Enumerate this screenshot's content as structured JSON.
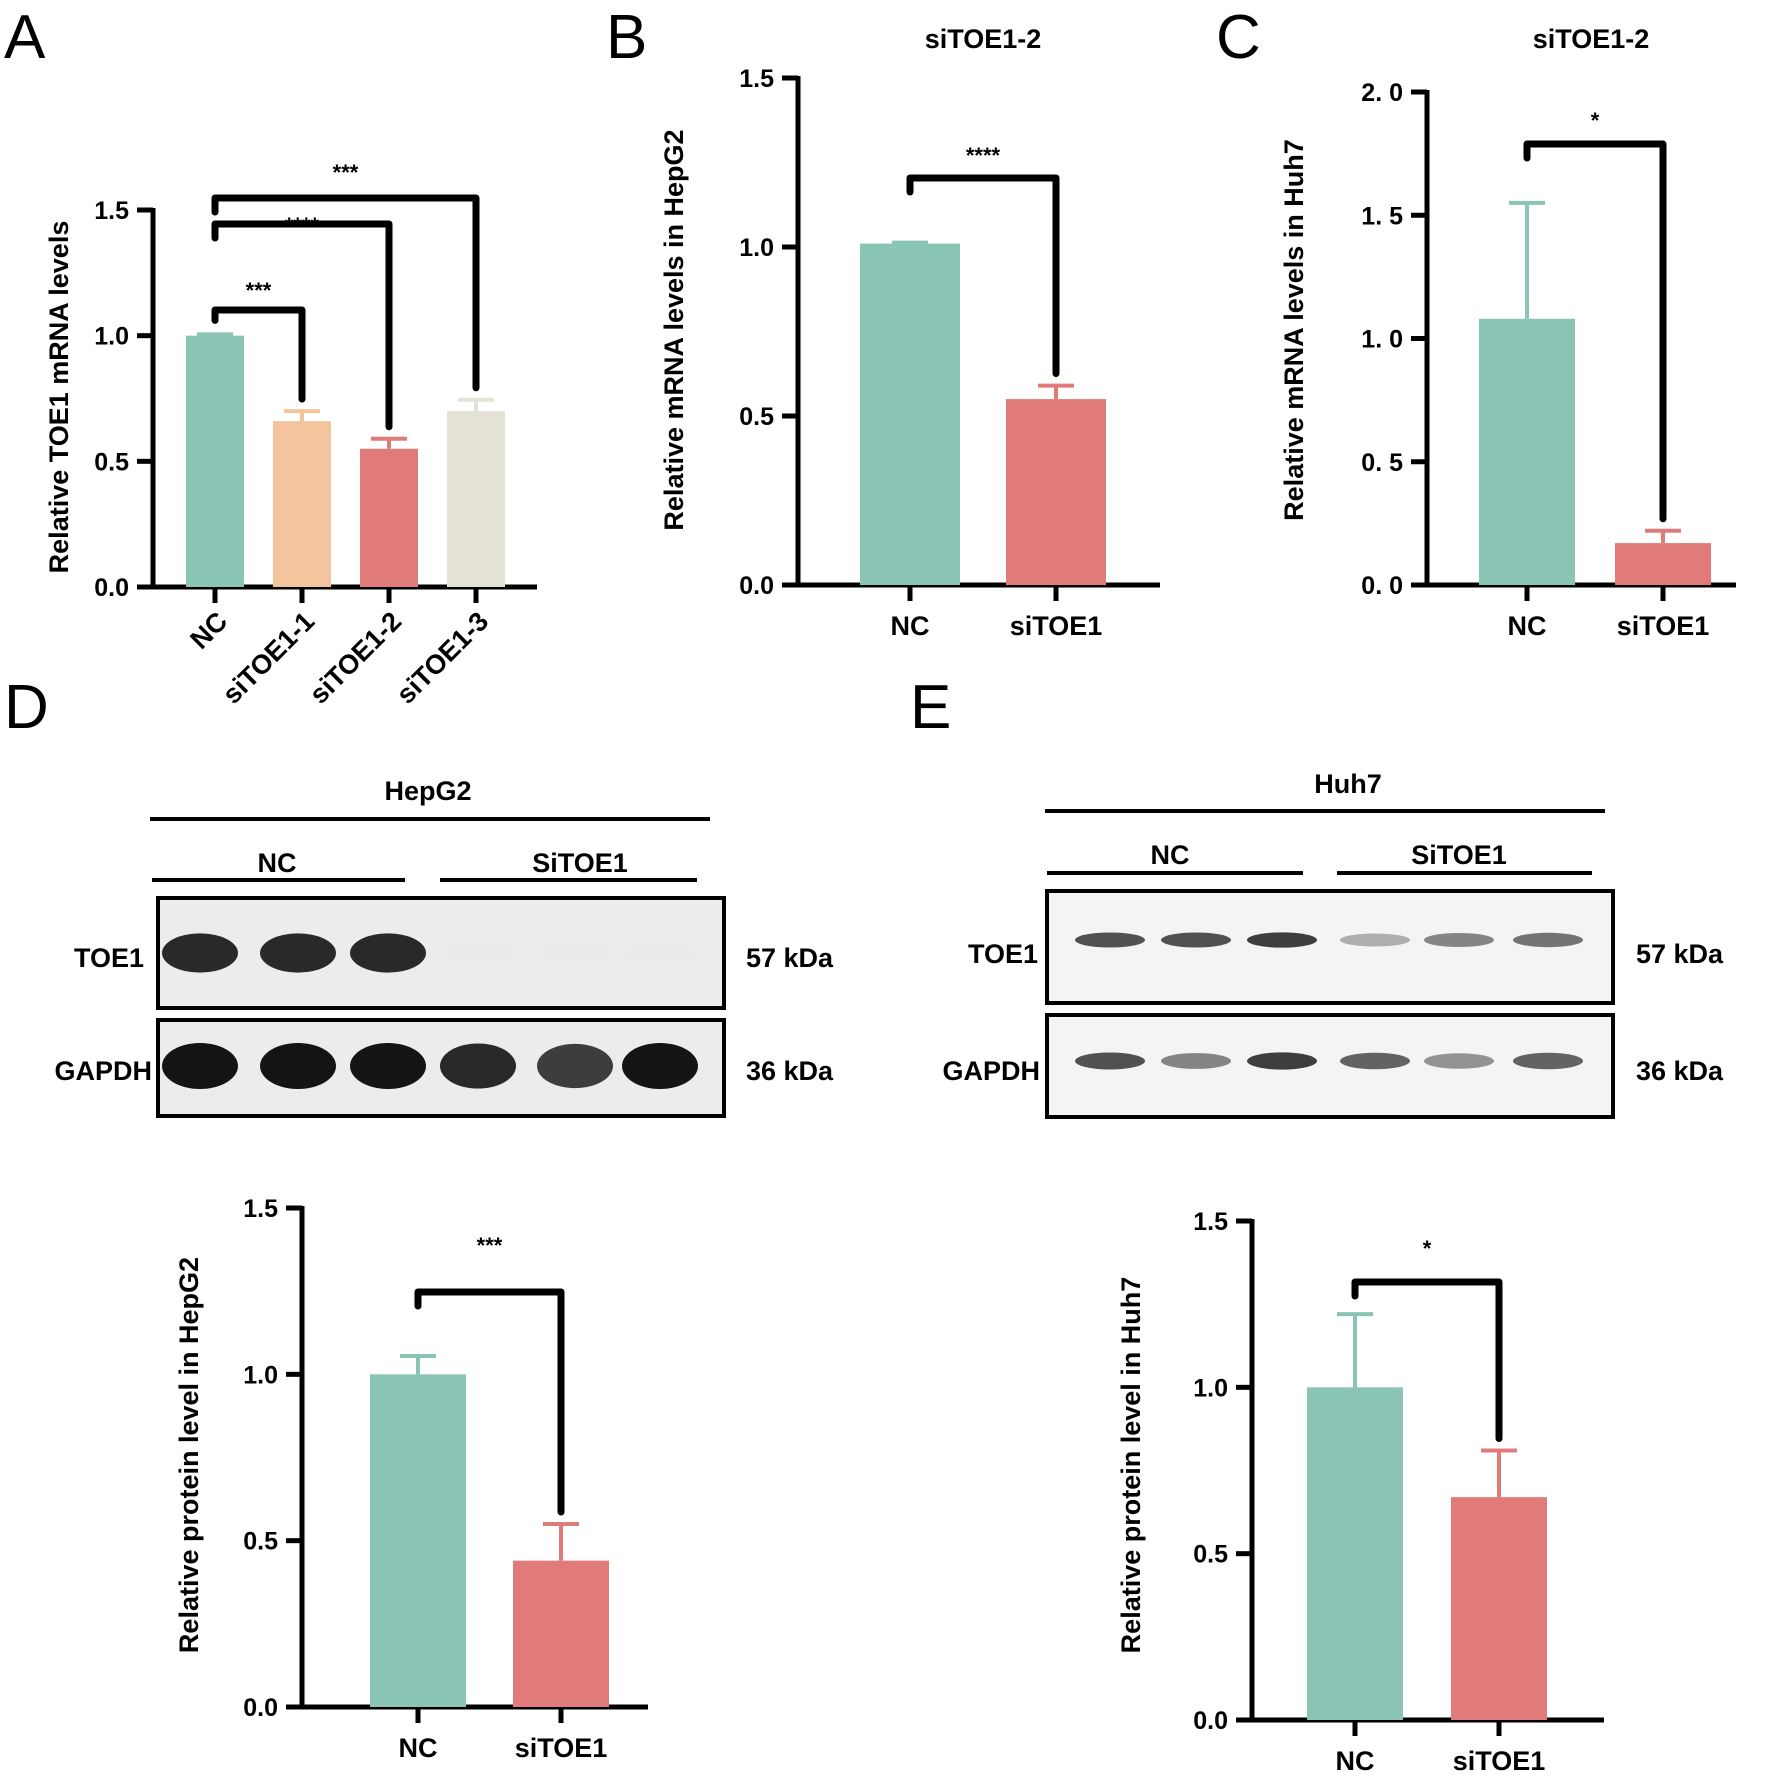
{
  "panel_letters": [
    "A",
    "B",
    "C",
    "D",
    "E"
  ],
  "colors": {
    "nc": "#8ac4b5",
    "si1": "#f4c59c",
    "si2": "#e07b7a",
    "si3": "#e4e1d6",
    "axis": "#000000"
  },
  "chart_data": [
    {
      "id": "A",
      "type": "bar",
      "title": "",
      "ylabel": "Relative TOE1 mRNA  levels",
      "xlabel": "",
      "ylim": [
        0,
        1.5
      ],
      "yticks": [
        0.0,
        0.5,
        1.0,
        1.5
      ],
      "ytick_labels": [
        "0.0",
        "0.5",
        "1.0",
        "1.5"
      ],
      "categories": [
        "NC",
        "siTOE1-1",
        "siTOE1-2",
        "siTOE1-3"
      ],
      "values": [
        1.0,
        0.66,
        0.55,
        0.7
      ],
      "errors": [
        0.005,
        0.04,
        0.04,
        0.045
      ],
      "significance": [
        {
          "from": 0,
          "to": 1,
          "label": "***"
        },
        {
          "from": 0,
          "to": 2,
          "label": "****"
        },
        {
          "from": 0,
          "to": 3,
          "label": "***"
        }
      ]
    },
    {
      "id": "B",
      "type": "bar",
      "title": "siTOE1-2",
      "ylabel": "Relative mRNA levels in HepG2",
      "xlabel": "",
      "ylim": [
        0,
        1.5
      ],
      "yticks": [
        0.0,
        0.5,
        1.0,
        1.5
      ],
      "ytick_labels": [
        "0.0",
        "0.5",
        "1.0",
        "1.5"
      ],
      "categories": [
        "NC",
        "siTOE1"
      ],
      "values": [
        1.01,
        0.55
      ],
      "errors": [
        0.003,
        0.04
      ],
      "significance": [
        {
          "from": 0,
          "to": 1,
          "label": "****"
        }
      ]
    },
    {
      "id": "C",
      "type": "bar",
      "title": "siTOE1-2",
      "ylabel": "Relative mRNA levels in Huh7",
      "xlabel": "",
      "ylim": [
        0,
        2.0
      ],
      "yticks": [
        0.0,
        0.5,
        1.0,
        1.5,
        2.0
      ],
      "ytick_labels": [
        "0. 0",
        "0. 5",
        "1. 0",
        "1. 5",
        "2. 0"
      ],
      "categories": [
        "NC",
        "siTOE1"
      ],
      "values": [
        1.08,
        0.17
      ],
      "errors": [
        0.47,
        0.05
      ],
      "significance": [
        {
          "from": 0,
          "to": 1,
          "label": "*"
        }
      ]
    },
    {
      "id": "D",
      "type": "bar",
      "title": "",
      "ylabel": "Relative protein level in HepG2",
      "xlabel": "",
      "ylim": [
        0,
        1.5
      ],
      "yticks": [
        0.0,
        0.5,
        1.0,
        1.5
      ],
      "ytick_labels": [
        "0.0",
        "0.5",
        "1.0",
        "1.5"
      ],
      "categories": [
        "NC",
        "siTOE1"
      ],
      "values": [
        1.0,
        0.44
      ],
      "errors": [
        0.055,
        0.11
      ],
      "significance": [
        {
          "from": 0,
          "to": 1,
          "label": "***"
        }
      ]
    },
    {
      "id": "E",
      "type": "bar",
      "title": "",
      "ylabel": "Relative protein level in Huh7",
      "xlabel": "",
      "ylim": [
        0,
        1.5
      ],
      "yticks": [
        0.0,
        0.5,
        1.0,
        1.5
      ],
      "ytick_labels": [
        "0.0",
        "0.5",
        "1.0",
        "1.5"
      ],
      "categories": [
        "NC",
        "siTOE1"
      ],
      "values": [
        1.0,
        0.67
      ],
      "errors": [
        0.22,
        0.14
      ],
      "significance": [
        {
          "from": 0,
          "to": 1,
          "label": "*"
        }
      ]
    }
  ],
  "blots": [
    {
      "id": "D",
      "cell_line": "HepG2",
      "groups": [
        "NC",
        "SiTOE1"
      ],
      "rows": [
        {
          "protein": "TOE1",
          "size": "57 kDa",
          "intensities": [
            0.95,
            0.95,
            0.95,
            0.05,
            0.02,
            0.02
          ]
        },
        {
          "protein": "GAPDH",
          "size": "36 kDa",
          "intensities": [
            1.0,
            1.0,
            1.0,
            0.95,
            0.9,
            1.0
          ]
        }
      ]
    },
    {
      "id": "E",
      "cell_line": "Huh7",
      "groups": [
        "NC",
        "SiTOE1"
      ],
      "rows": [
        {
          "protein": "TOE1",
          "size": "57 kDa",
          "intensities": [
            0.85,
            0.85,
            0.9,
            0.55,
            0.7,
            0.75
          ]
        },
        {
          "protein": "GAPDH",
          "size": "36 kDa",
          "intensities": [
            0.85,
            0.7,
            0.9,
            0.8,
            0.65,
            0.8
          ]
        }
      ]
    }
  ]
}
